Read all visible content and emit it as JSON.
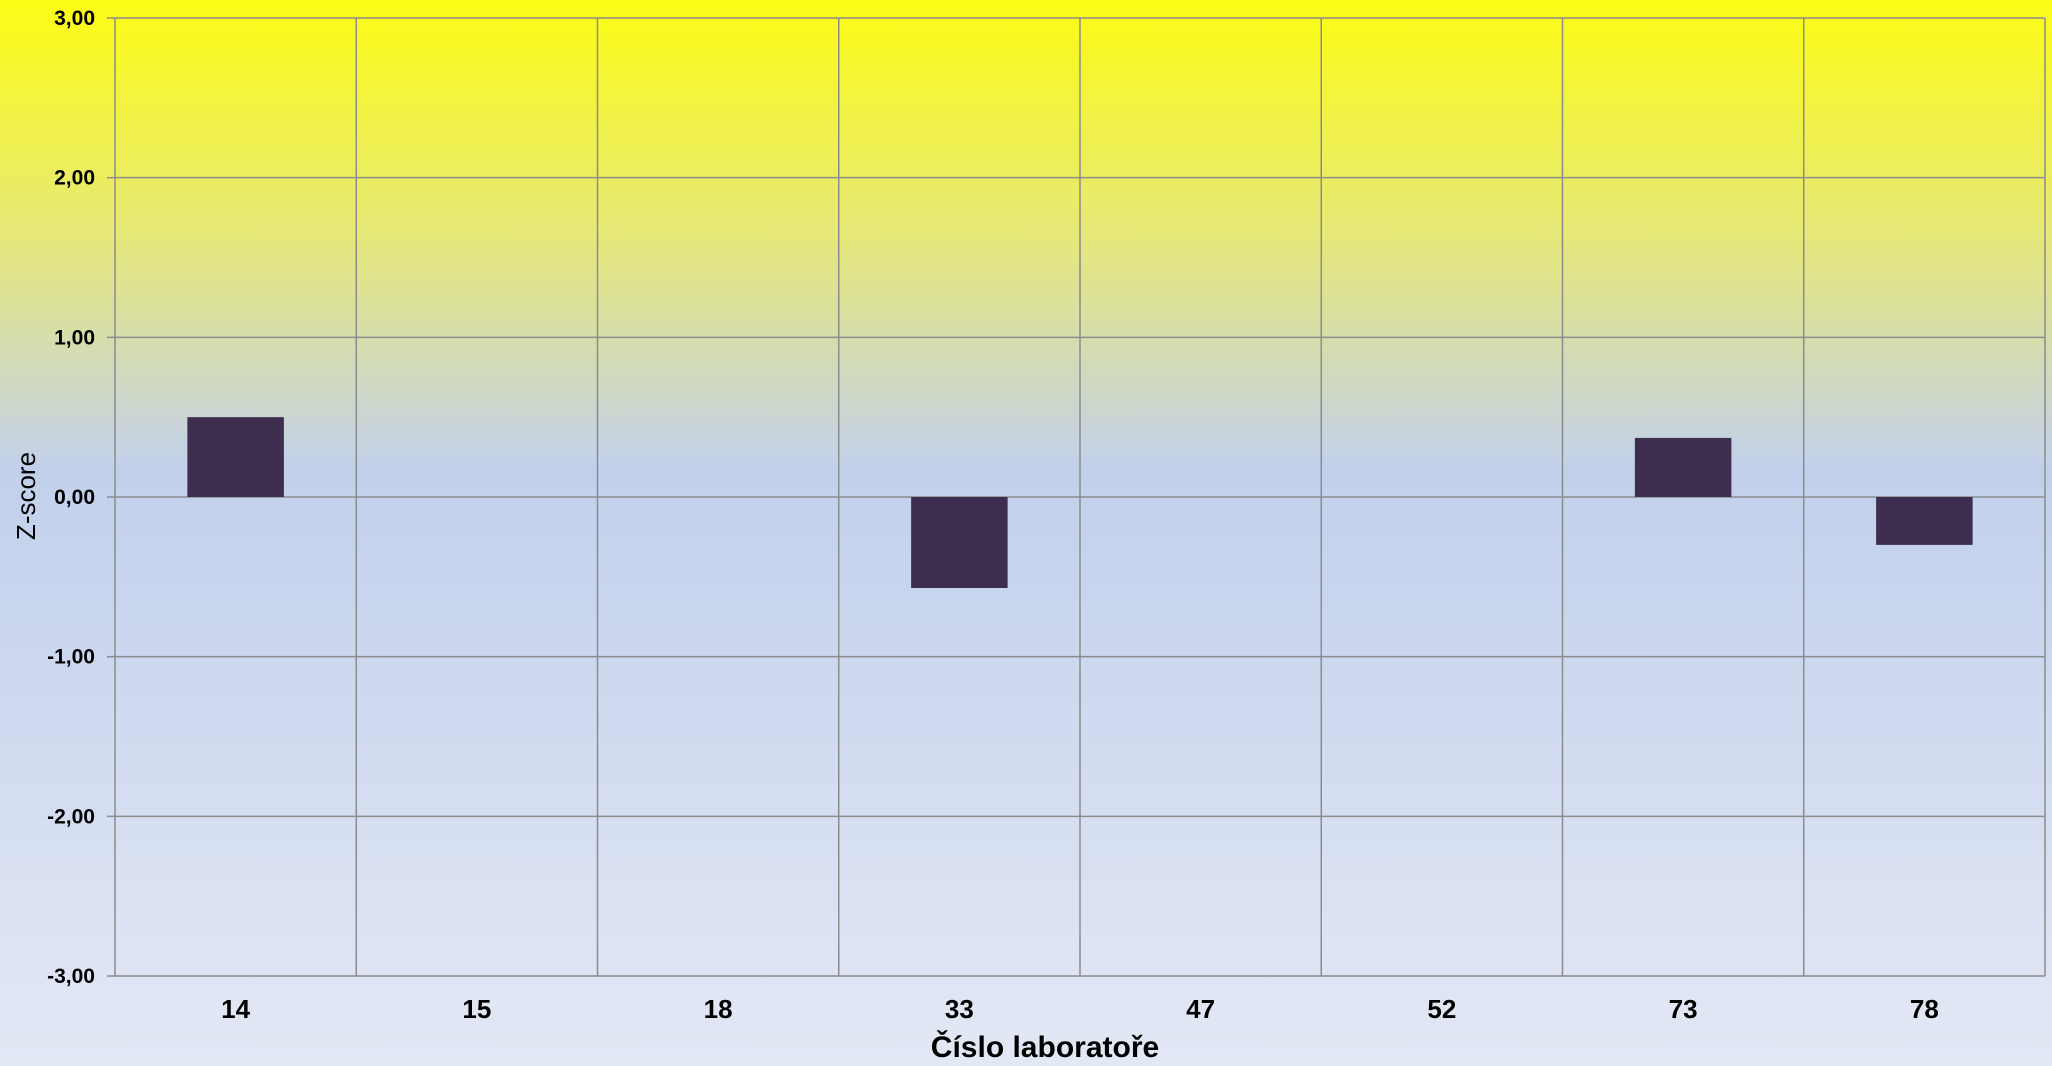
{
  "chart_data": {
    "type": "bar",
    "title": "",
    "xlabel": "Číslo laboratoře",
    "ylabel": "Z-score",
    "categories": [
      "14",
      "15",
      "18",
      "33",
      "47",
      "52",
      "73",
      "78"
    ],
    "values": [
      0.5,
      null,
      null,
      -0.57,
      null,
      null,
      0.37,
      -0.3
    ],
    "ylim": [
      -3.0,
      3.0
    ],
    "yticks": [
      3.0,
      2.0,
      1.0,
      0.0,
      -1.0,
      -2.0,
      -3.0
    ],
    "ytick_labels": [
      "3,00",
      "2,00",
      "1,00",
      "0,00",
      "-1,00",
      "-2,00",
      "-3,00"
    ],
    "grid": true,
    "legend": "none",
    "colors": {
      "bar": "#3d2e50",
      "grid": "#8c8c8c",
      "background_top": "#fcfc14",
      "background_middle": "#c2d0ec",
      "background_bottom": "#e3e8f5"
    }
  }
}
